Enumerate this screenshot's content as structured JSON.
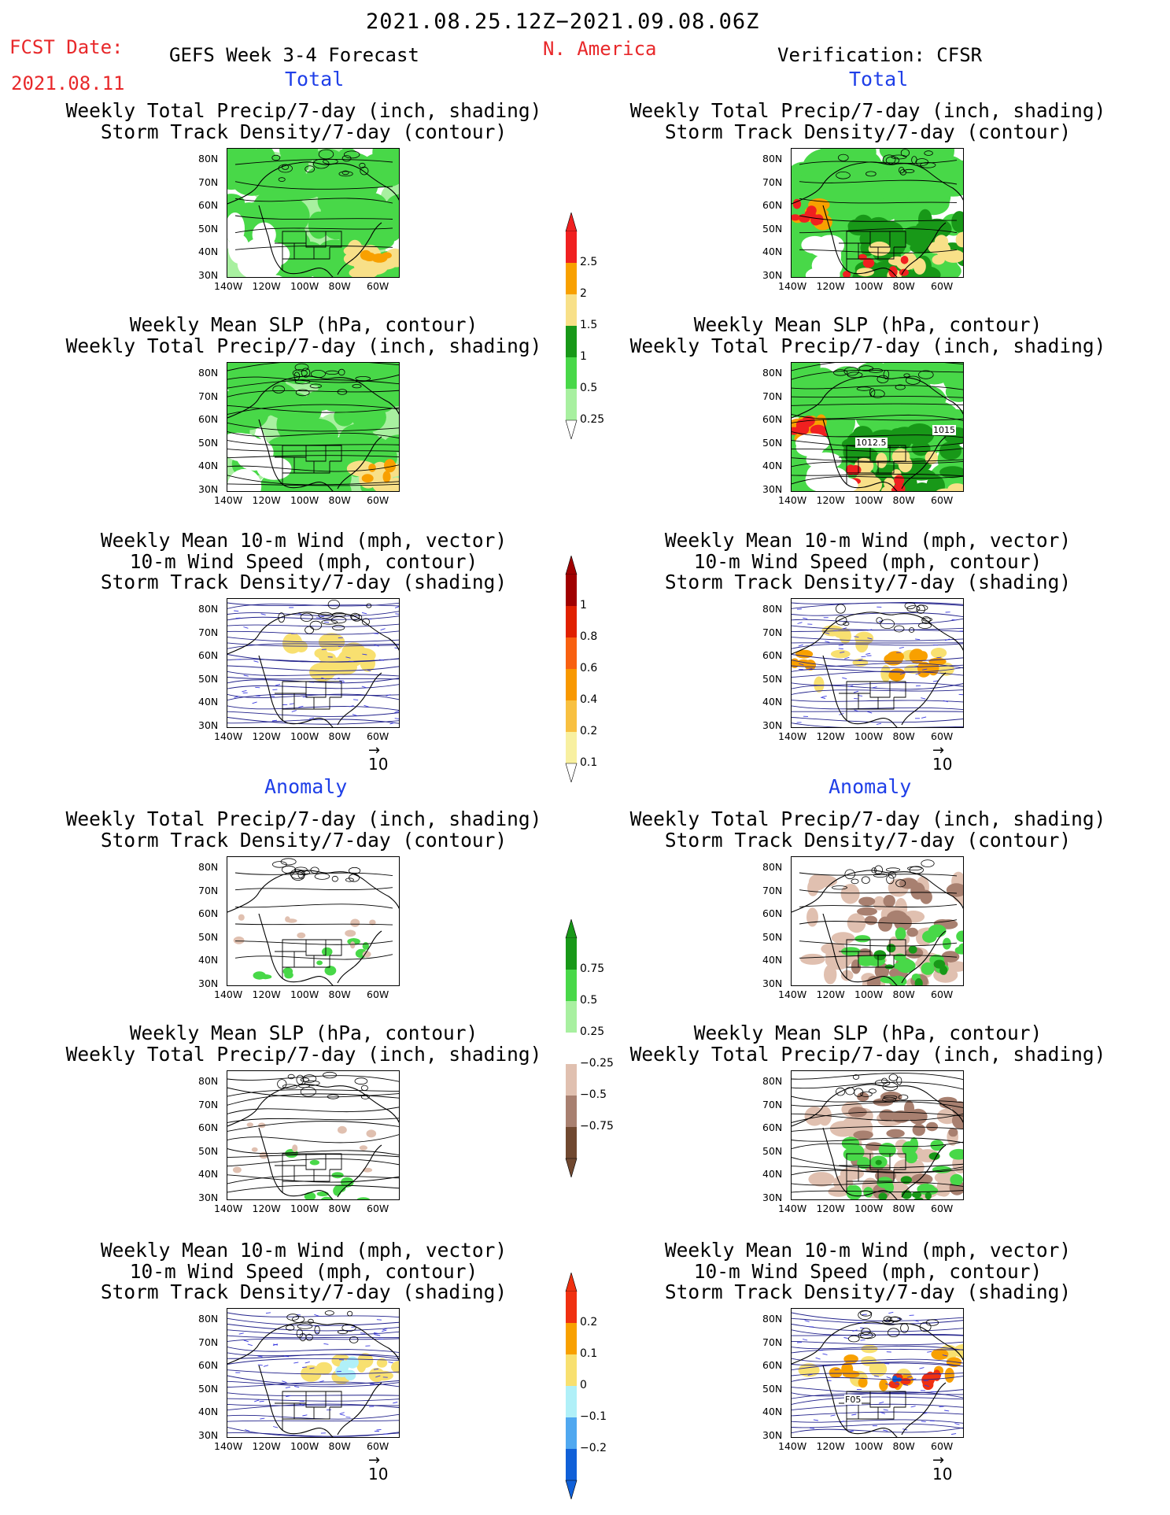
{
  "header": {
    "period": "2021.08.25.12Z−2021.09.08.06Z",
    "fcst_label": "FCST Date:",
    "fcst_date": "2021.08.11",
    "forecast_title": "GEFS Week 3-4 Forecast",
    "region": "N. America",
    "verification": "Verification: CFSR"
  },
  "sections": {
    "total": "Total",
    "anomaly": "Anomaly"
  },
  "panel_titles": {
    "precip_storm": [
      "Weekly Total Precip/7-day (inch, shading)",
      "Storm Track Density/7-day (contour)"
    ],
    "slp_precip": [
      "Weekly Mean SLP (hPa, contour)",
      "Weekly Total Precip/7-day (inch, shading)"
    ],
    "wind_storm": [
      "Weekly Mean 10-m Wind (mph, vector)",
      "10-m Wind Speed (mph, contour)",
      "Storm Track Density/7-day (shading)"
    ]
  },
  "axes": {
    "lat_ticks": [
      "80N",
      "70N",
      "60N",
      "50N",
      "40N",
      "30N"
    ],
    "lon_ticks": [
      "140W",
      "120W",
      "100W",
      "80W",
      "60W"
    ]
  },
  "contour_labels": [
    "1015",
    "1012.5",
    "F05"
  ],
  "vector_ref": "10",
  "colorbars": {
    "precip_total": {
      "labels": [
        "2.5",
        "2",
        "1.5",
        "1",
        "0.5",
        "0.25"
      ],
      "colors": [
        "#f02020",
        "#f8a000",
        "#f8e088",
        "#189818",
        "#48d848",
        "#a8f0a0"
      ]
    },
    "storm_total": {
      "labels": [
        "1",
        "0.8",
        "0.6",
        "0.4",
        "0.2",
        "0.1"
      ],
      "colors": [
        "#a00000",
        "#e02000",
        "#f86010",
        "#f89800",
        "#f8c040",
        "#f8f0a0"
      ]
    },
    "precip_anom": {
      "labels": [
        "0.75",
        "0.5",
        "0.25",
        "−0.25",
        "−0.5",
        "−0.75"
      ],
      "colors": [
        "#189818",
        "#48d848",
        "#a8f0a0",
        "#ffffff",
        "#e0c0b0",
        "#a88070",
        "#704830"
      ]
    },
    "storm_anom": {
      "labels": [
        "0.2",
        "0.1",
        "0",
        "−0.1",
        "−0.2"
      ],
      "colors": [
        "#f03010",
        "#f8a000",
        "#f8e070",
        "#b0f0f8",
        "#50a8f0",
        "#1060d8"
      ]
    }
  }
}
